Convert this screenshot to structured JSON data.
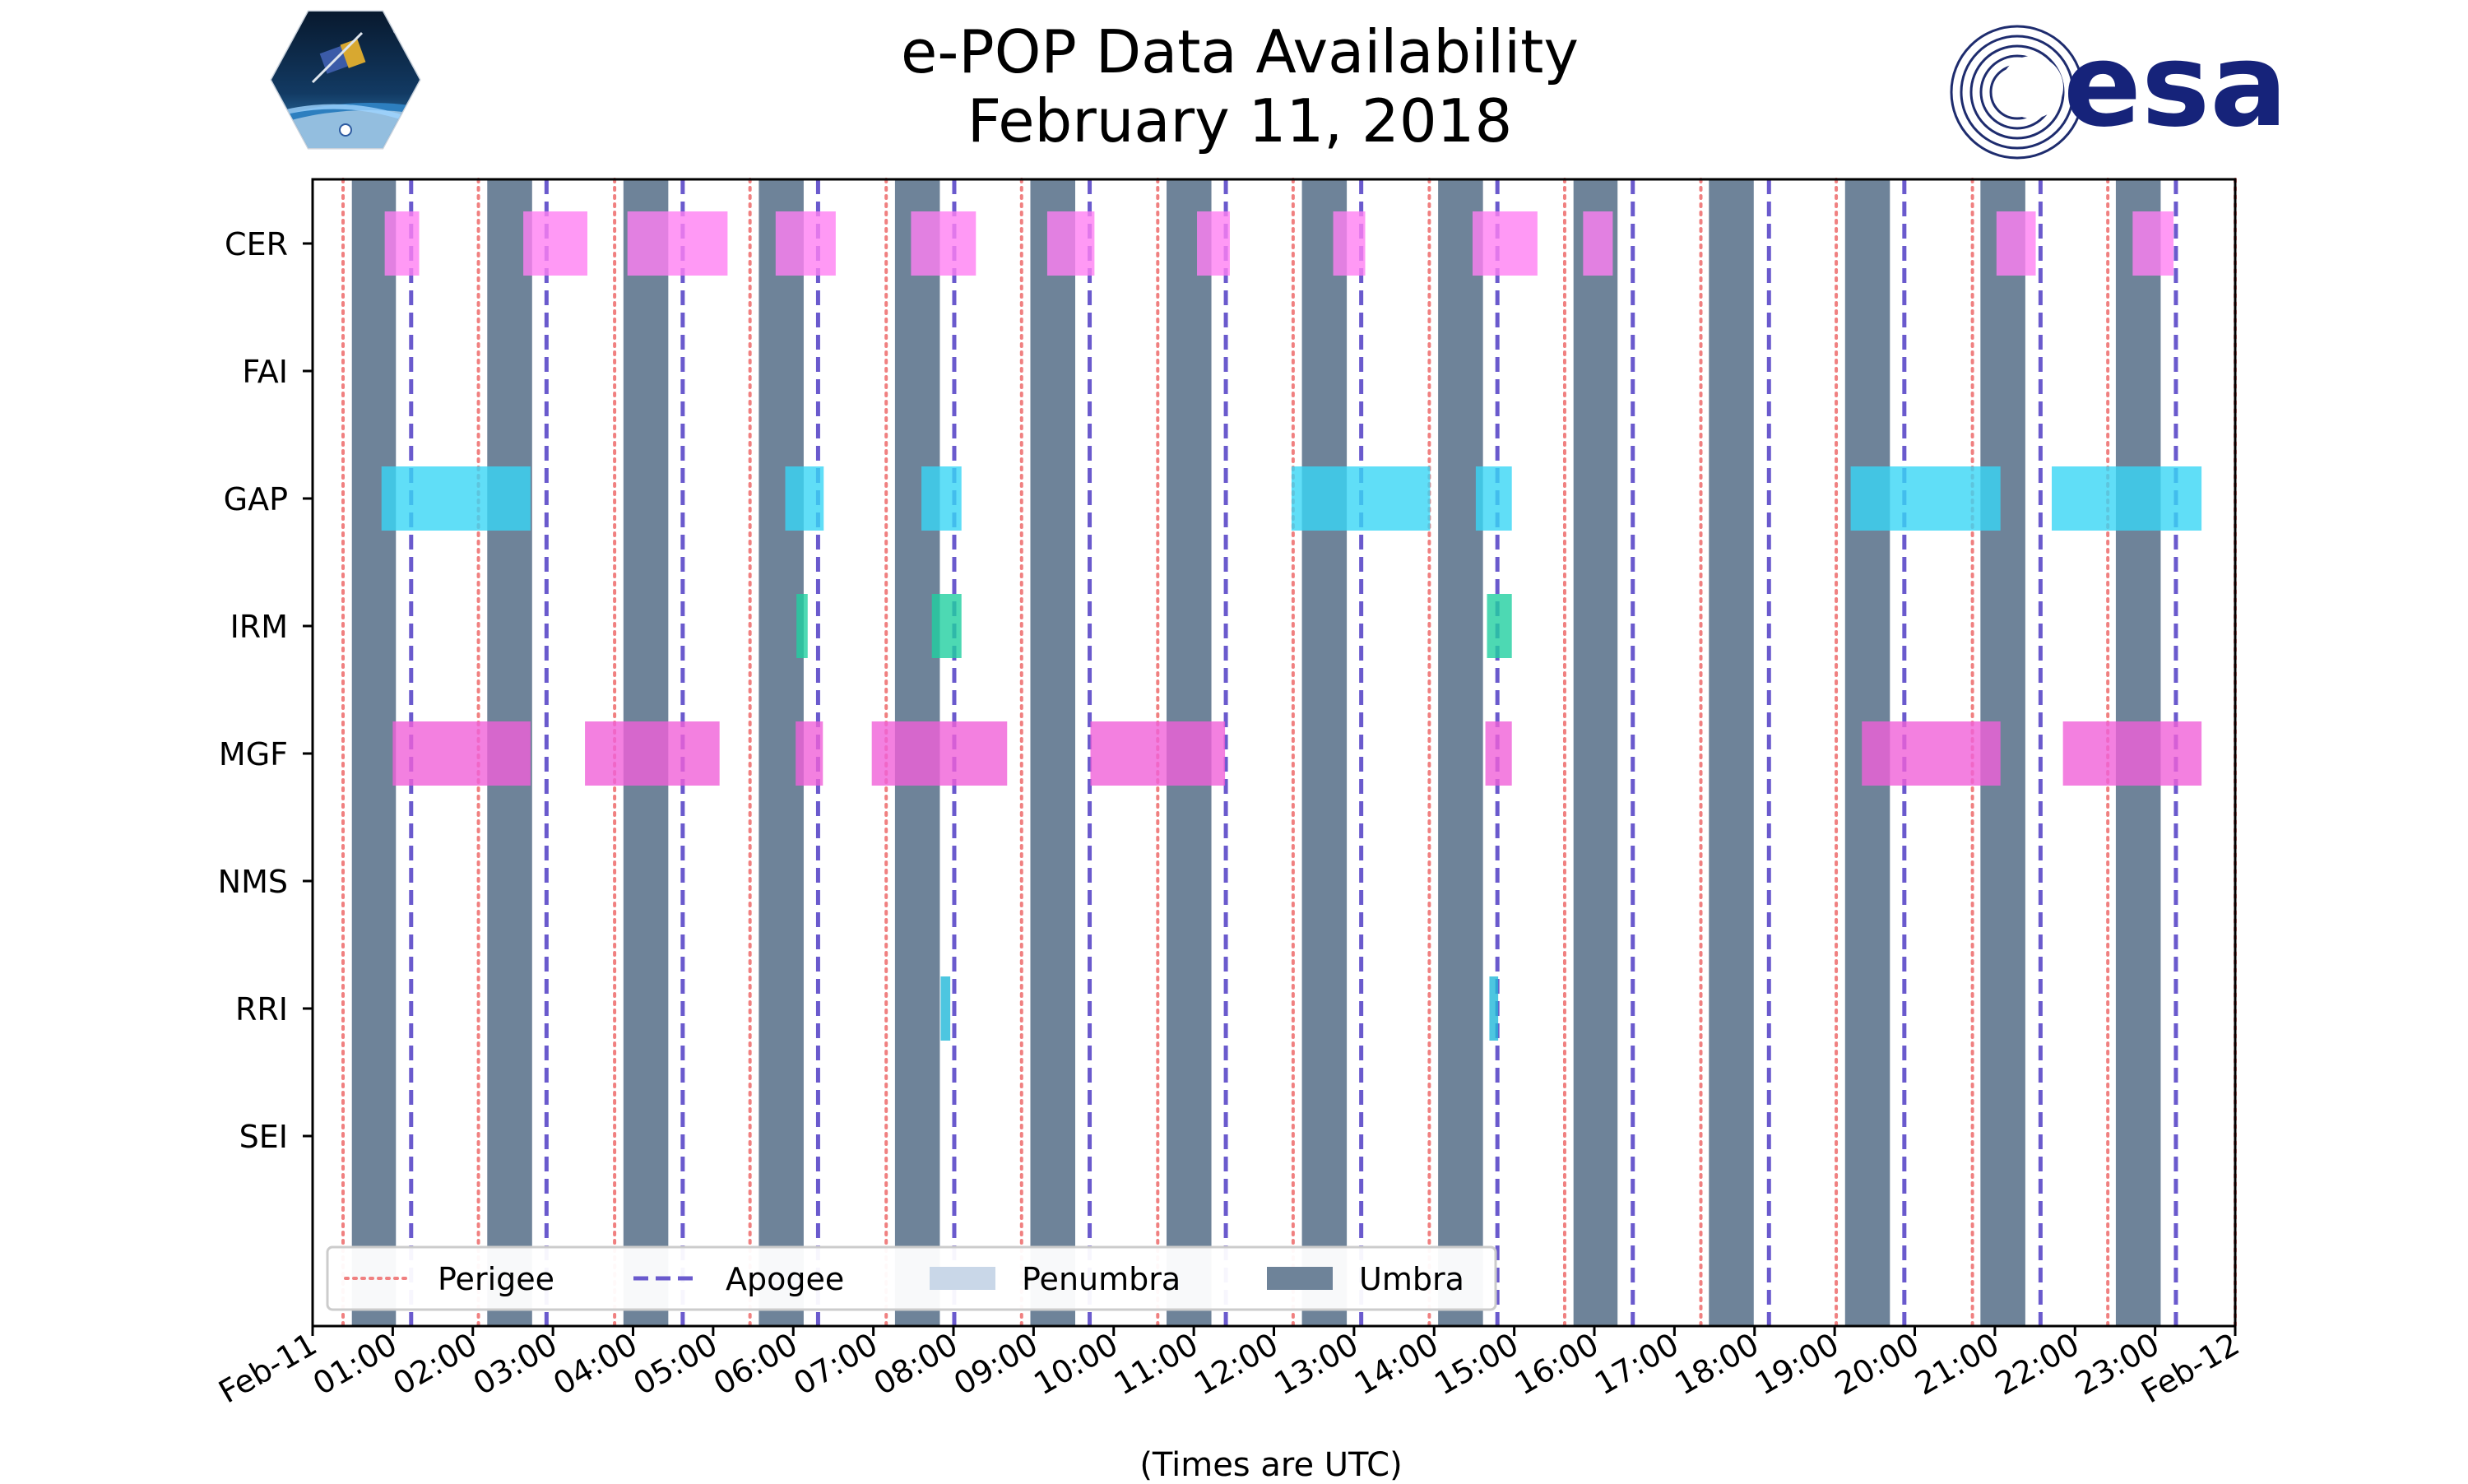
{
  "chart_data": {
    "type": "timeline",
    "title": "e-POP Data Availability",
    "subtitle": "February 11, 2018",
    "xlabel": "(Times are UTC)",
    "xlim": [
      0,
      24
    ],
    "x_unit": "hours UTC",
    "x_tick_labels": [
      "Feb-11",
      "01:00",
      "02:00",
      "03:00",
      "04:00",
      "05:00",
      "06:00",
      "07:00",
      "08:00",
      "09:00",
      "10:00",
      "11:00",
      "12:00",
      "13:00",
      "14:00",
      "15:00",
      "16:00",
      "17:00",
      "18:00",
      "19:00",
      "20:00",
      "21:00",
      "22:00",
      "23:00",
      "Feb-12"
    ],
    "instruments": [
      "CER",
      "FAI",
      "GAP",
      "IRM",
      "MGF",
      "NMS",
      "RRI",
      "SEI"
    ],
    "umbra": [
      [
        0.49,
        1.04
      ],
      [
        2.18,
        2.74
      ],
      [
        3.88,
        4.44
      ],
      [
        5.57,
        6.13
      ],
      [
        7.27,
        7.83
      ],
      [
        8.96,
        9.52
      ],
      [
        10.66,
        11.22
      ],
      [
        12.35,
        12.91
      ],
      [
        14.05,
        14.61
      ],
      [
        15.74,
        16.29
      ],
      [
        17.43,
        17.99
      ],
      [
        19.13,
        19.69
      ],
      [
        20.82,
        21.38
      ],
      [
        22.51,
        23.07
      ]
    ],
    "perigee": [
      0.38,
      2.07,
      3.77,
      5.46,
      7.16,
      8.85,
      10.55,
      12.24,
      13.94,
      15.63,
      17.33,
      19.02,
      20.72,
      22.41,
      24.0
    ],
    "apogee": [
      1.23,
      2.92,
      4.62,
      6.31,
      8.01,
      9.7,
      11.4,
      13.09,
      14.79,
      16.48,
      18.18,
      19.87,
      21.57,
      23.26
    ],
    "series": [
      {
        "name": "CER",
        "color": "#ff80f2",
        "intervals": [
          [
            0.9,
            1.33
          ],
          [
            2.63,
            3.43
          ],
          [
            3.93,
            5.18
          ],
          [
            5.78,
            6.53
          ],
          [
            7.47,
            8.28
          ],
          [
            9.17,
            9.76
          ],
          [
            11.04,
            11.45
          ],
          [
            12.74,
            13.14
          ],
          [
            14.48,
            15.29
          ],
          [
            15.86,
            16.23
          ],
          [
            21.02,
            21.51
          ],
          [
            22.72,
            23.23
          ]
        ]
      },
      {
        "name": "FAI",
        "color": "#b45fe0",
        "intervals": []
      },
      {
        "name": "GAP",
        "color": "#38d6f5",
        "intervals": [
          [
            0.86,
            2.72
          ],
          [
            5.9,
            6.38
          ],
          [
            7.6,
            8.1
          ],
          [
            12.22,
            13.95
          ],
          [
            14.52,
            14.97
          ],
          [
            19.2,
            21.07
          ],
          [
            21.71,
            23.58
          ]
        ]
      },
      {
        "name": "IRM",
        "color": "#20cfa0",
        "intervals": [
          [
            6.04,
            6.18
          ],
          [
            7.73,
            8.1
          ],
          [
            14.66,
            14.97
          ]
        ]
      },
      {
        "name": "MGF",
        "color": "#f060d8",
        "intervals": [
          [
            1.0,
            2.72
          ],
          [
            3.4,
            5.08
          ],
          [
            6.03,
            6.37
          ],
          [
            6.98,
            8.67
          ],
          [
            9.71,
            11.39
          ],
          [
            14.64,
            14.97
          ],
          [
            19.34,
            21.07
          ],
          [
            21.85,
            23.58
          ]
        ]
      },
      {
        "name": "NMS",
        "color": "#8888ff",
        "intervals": []
      },
      {
        "name": "RRI",
        "color": "#20b8d8",
        "intervals": [
          [
            7.84,
            7.96
          ],
          [
            14.69,
            14.8
          ]
        ]
      },
      {
        "name": "SEI",
        "color": "#ffa040",
        "intervals": []
      }
    ],
    "colors": {
      "umbra": "#6e8399",
      "penumbra": "#c9d7e8",
      "perigee": "#f08080",
      "apogee": "#6a5acd"
    },
    "legend": {
      "position": "bottom-left",
      "items": [
        {
          "label": "Perigee",
          "style": "dotted",
          "color": "#f08080"
        },
        {
          "label": "Apogee",
          "style": "dashed",
          "color": "#6a5acd"
        },
        {
          "label": "Penumbra",
          "style": "patch",
          "color": "#c9d7e8"
        },
        {
          "label": "Umbra",
          "style": "patch",
          "color": "#6e8399"
        }
      ]
    }
  },
  "logos": {
    "left_mission_logo": "CASSIOPE",
    "right_agency_logo": "esa"
  }
}
